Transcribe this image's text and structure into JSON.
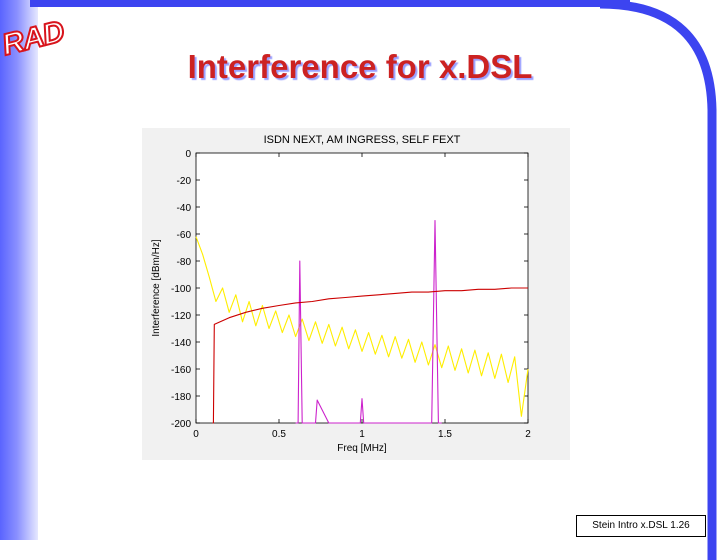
{
  "slide": {
    "logo_text": "RAD",
    "title": "Interference for x.DSL",
    "footer": "Stein Intro x.DSL 1.26"
  },
  "colors": {
    "title": "#cc2222",
    "accent": "#3c44f0",
    "next": "#ffee00",
    "ingress": "#cc22cc",
    "fext": "#cc0000"
  },
  "chart_data": {
    "type": "line",
    "title": "ISDN NEXT, AM INGRESS, SELF FEXT",
    "xlabel": "Freq [MHz]",
    "ylabel": "Interference [dBm/Hz]",
    "xlim": [
      0,
      2
    ],
    "ylim": [
      -200,
      0
    ],
    "x_ticks": [
      "0",
      "0.5",
      "1",
      "1.5",
      "2"
    ],
    "x_tick_values": [
      0,
      0.5,
      1,
      1.5,
      2
    ],
    "y_ticks": [
      "0",
      "-20",
      "-40",
      "-60",
      "-80",
      "-100",
      "-120",
      "-140",
      "-160",
      "-180",
      "-200"
    ],
    "y_tick_values": [
      0,
      -20,
      -40,
      -60,
      -80,
      -100,
      -120,
      -140,
      -160,
      -180,
      -200
    ],
    "grid": false,
    "series": [
      {
        "key": "isdn_next",
        "color": "#ffee00",
        "x": [
          0,
          0.04,
          0.08,
          0.12,
          0.16,
          0.2,
          0.24,
          0.28,
          0.32,
          0.36,
          0.4,
          0.44,
          0.48,
          0.52,
          0.56,
          0.6,
          0.64,
          0.68,
          0.72,
          0.76,
          0.8,
          0.84,
          0.88,
          0.92,
          0.96,
          1.0,
          1.04,
          1.08,
          1.12,
          1.16,
          1.2,
          1.24,
          1.28,
          1.32,
          1.36,
          1.4,
          1.44,
          1.48,
          1.52,
          1.56,
          1.6,
          1.64,
          1.68,
          1.72,
          1.76,
          1.8,
          1.84,
          1.88,
          1.92,
          1.96,
          2.0
        ],
        "y": [
          -62,
          -75,
          -92,
          -110,
          -100,
          -118,
          -105,
          -125,
          -110,
          -128,
          -113,
          -130,
          -117,
          -133,
          -120,
          -136,
          -123,
          -139,
          -125,
          -141,
          -127,
          -143,
          -129,
          -145,
          -131,
          -147,
          -133,
          -149,
          -135,
          -151,
          -136,
          -152,
          -138,
          -155,
          -140,
          -157,
          -142,
          -159,
          -143,
          -161,
          -145,
          -163,
          -146,
          -165,
          -148,
          -167,
          -149,
          -170,
          -151,
          -195,
          -160
        ]
      },
      {
        "key": "am_ingress",
        "color": "#cc22cc",
        "x": [
          0.6,
          0.615,
          0.625,
          0.64,
          0.7,
          0.72,
          0.73,
          0.8,
          0.99,
          1.0,
          1.01,
          1.4,
          1.42,
          1.44,
          1.46,
          1.48
        ],
        "y": [
          -200,
          -200,
          -80,
          -200,
          -200,
          -200,
          -183,
          -200,
          -200,
          -182,
          -200,
          -200,
          -200,
          -50,
          -200,
          -200
        ]
      },
      {
        "key": "self_fext",
        "color": "#cc0000",
        "x": [
          0.1,
          0.105,
          0.11,
          0.2,
          0.3,
          0.4,
          0.5,
          0.6,
          0.7,
          0.8,
          0.9,
          1.0,
          1.1,
          1.2,
          1.3,
          1.4,
          1.5,
          1.6,
          1.7,
          1.8,
          1.9,
          2.0
        ],
        "y": [
          -200,
          -200,
          -127,
          -122,
          -118,
          -115,
          -113,
          -111,
          -110,
          -108,
          -107,
          -106,
          -105,
          -104,
          -103,
          -103,
          -102,
          -102,
          -101,
          -101,
          -100,
          -100
        ]
      }
    ]
  }
}
